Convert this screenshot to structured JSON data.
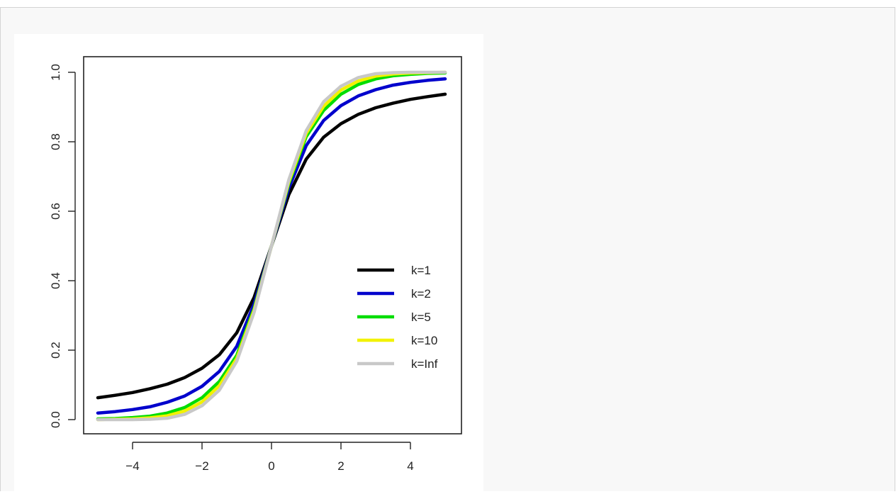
{
  "chart_data": {
    "type": "line",
    "title": "",
    "xlabel": "",
    "ylabel": "",
    "xlim": [
      -5,
      5
    ],
    "ylim": [
      0,
      1
    ],
    "x_ticks": [
      -4,
      -2,
      0,
      2,
      4
    ],
    "x_tick_labels": [
      "−4",
      "−2",
      "0",
      "2",
      "4"
    ],
    "y_ticks": [
      0,
      0.2,
      0.4,
      0.6,
      0.8,
      1.0
    ],
    "y_tick_labels": [
      "0.0",
      "0.2",
      "0.4",
      "0.6",
      "0.8",
      "1.0"
    ],
    "grid": false,
    "legend_position": "right",
    "x": [
      -5,
      -4.5,
      -4,
      -3.5,
      -3,
      -2.5,
      -2,
      -1.5,
      -1,
      -0.5,
      0,
      0.5,
      1,
      1.5,
      2,
      2.5,
      3,
      3.5,
      4,
      4.5,
      5
    ],
    "series": [
      {
        "name": "k=1",
        "color": "#000000",
        "values": [
          0.063,
          0.07,
          0.078,
          0.089,
          0.102,
          0.121,
          0.148,
          0.187,
          0.25,
          0.352,
          0.5,
          0.648,
          0.75,
          0.813,
          0.852,
          0.879,
          0.898,
          0.911,
          0.922,
          0.93,
          0.937
        ]
      },
      {
        "name": "k=2",
        "color": "#0000cc",
        "values": [
          0.019,
          0.023,
          0.029,
          0.037,
          0.05,
          0.068,
          0.096,
          0.139,
          0.211,
          0.333,
          0.5,
          0.667,
          0.789,
          0.861,
          0.904,
          0.932,
          0.95,
          0.963,
          0.971,
          0.977,
          0.981
        ]
      },
      {
        "name": "k=5",
        "color": "#00dd00",
        "values": [
          0.002,
          0.003,
          0.006,
          0.01,
          0.019,
          0.035,
          0.063,
          0.11,
          0.185,
          0.32,
          0.5,
          0.68,
          0.815,
          0.89,
          0.937,
          0.965,
          0.981,
          0.99,
          0.994,
          0.997,
          0.998
        ]
      },
      {
        "name": "k=10",
        "color": "#f2f200",
        "values": [
          0.0,
          0.001,
          0.002,
          0.005,
          0.011,
          0.025,
          0.051,
          0.098,
          0.176,
          0.315,
          0.5,
          0.685,
          0.824,
          0.902,
          0.949,
          0.975,
          0.989,
          0.995,
          0.998,
          0.999,
          1.0
        ]
      },
      {
        "name": "k=Inf",
        "color": "#c8c8c8",
        "values": [
          0.0,
          0.0,
          0.0,
          0.001,
          0.004,
          0.015,
          0.04,
          0.085,
          0.168,
          0.309,
          0.5,
          0.691,
          0.832,
          0.915,
          0.96,
          0.985,
          0.996,
          0.999,
          1.0,
          1.0,
          1.0
        ]
      }
    ]
  }
}
